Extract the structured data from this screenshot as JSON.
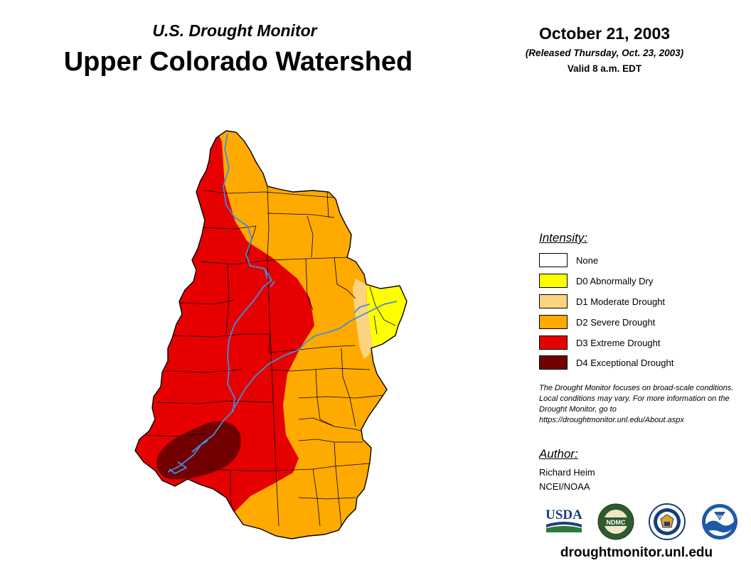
{
  "header": {
    "subtitle": "U.S. Drought Monitor",
    "title": "Upper Colorado Watershed",
    "date": "October 21, 2003",
    "released": "(Released Thursday, Oct. 23, 2003)",
    "valid": "Valid 8 a.m. EDT"
  },
  "legend": {
    "title": "Intensity:",
    "items": [
      {
        "label": "None",
        "color": "#ffffff"
      },
      {
        "label": "D0 Abnormally Dry",
        "color": "#ffff00"
      },
      {
        "label": "D1 Moderate Drought",
        "color": "#fcd37f"
      },
      {
        "label": "D2 Severe Drought",
        "color": "#ffaa00"
      },
      {
        "label": "D3 Extreme Drought",
        "color": "#e60000"
      },
      {
        "label": "D4 Exceptional Drought",
        "color": "#730000"
      }
    ]
  },
  "note": "The Drought Monitor focuses on broad-scale conditions. Local conditions may vary. For more information on the Drought Monitor, go to https://droughtmonitor.unl.edu/About.aspx",
  "author": {
    "title": "Author:",
    "name": "Richard Heim",
    "org": "NCEI/NOAA"
  },
  "logos": [
    {
      "name": "usda-logo",
      "text": "USDA"
    },
    {
      "name": "ndmc-logo",
      "text": "NDMC"
    },
    {
      "name": "doc-seal",
      "text": ""
    },
    {
      "name": "noaa-logo",
      "text": "NOAA"
    }
  ],
  "website": "droughtmonitor.unl.edu",
  "colors": {
    "river": "#3d8fe0",
    "border": "#000000"
  }
}
